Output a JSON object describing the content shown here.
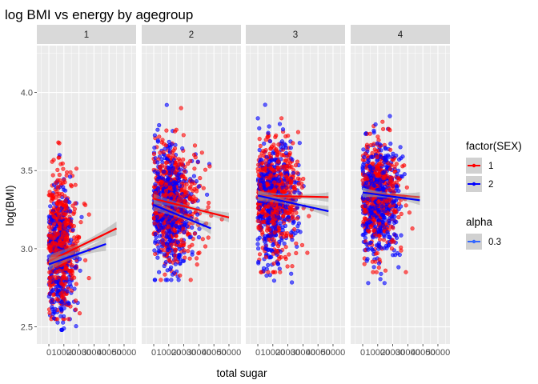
{
  "chart_data": {
    "type": "scatter",
    "title": "log BMI vs energy by agegroup",
    "xlabel": "total sugar",
    "ylabel": "log(BMI)",
    "facets": [
      "1",
      "2",
      "3",
      "4"
    ],
    "xlim": [
      -8000,
      58000
    ],
    "ylim": [
      2.39,
      4.3
    ],
    "x_ticks": [
      0,
      10000,
      20000,
      30000,
      40000,
      50000
    ],
    "x_tick_labels": [
      "0",
      "10000",
      "20000",
      "30000",
      "40000",
      "50000"
    ],
    "y_ticks": [
      2.5,
      3.0,
      3.5,
      4.0
    ],
    "y_tick_labels": [
      "2.5",
      "3.0",
      "3.5",
      "4.0"
    ],
    "colors": {
      "1": "#ff0000",
      "2": "#0000ff",
      "panel_bg": "#ebebeb",
      "grid": "#ffffff",
      "strip_bg": "#d9d9d9",
      "ribbon": "#999999",
      "alpha_key": "#3366ff"
    },
    "point_alpha": 0.6,
    "series": [
      {
        "name": "1",
        "color": "#ff0000"
      },
      {
        "name": "2",
        "color": "#0000ff"
      }
    ],
    "point_clouds": [
      {
        "facet": "1",
        "group": "1",
        "n": 520,
        "x_mean": 9000,
        "x_sd": 7500,
        "x_range": [
          0,
          47000
        ],
        "y_mean": 3.05,
        "y_sd": 0.21,
        "y_range": [
          2.55,
          3.75
        ]
      },
      {
        "facet": "1",
        "group": "2",
        "n": 420,
        "x_mean": 8500,
        "x_sd": 6500,
        "x_range": [
          0,
          32000
        ],
        "y_mean": 2.98,
        "y_sd": 0.2,
        "y_range": [
          2.48,
          3.65
        ]
      },
      {
        "facet": "2",
        "group": "1",
        "n": 560,
        "x_mean": 15000,
        "x_sd": 9500,
        "x_range": [
          0,
          50000
        ],
        "y_mean": 3.3,
        "y_sd": 0.18,
        "y_range": [
          2.8,
          3.9
        ]
      },
      {
        "facet": "2",
        "group": "2",
        "n": 560,
        "x_mean": 13500,
        "x_sd": 8500,
        "x_range": [
          0,
          43000
        ],
        "y_mean": 3.26,
        "y_sd": 0.19,
        "y_range": [
          2.8,
          3.92
        ]
      },
      {
        "facet": "3",
        "group": "1",
        "n": 560,
        "x_mean": 14000,
        "x_sd": 9000,
        "x_range": [
          0,
          48000
        ],
        "y_mean": 3.33,
        "y_sd": 0.17,
        "y_range": [
          2.85,
          3.95
        ]
      },
      {
        "facet": "3",
        "group": "2",
        "n": 520,
        "x_mean": 13000,
        "x_sd": 8000,
        "x_range": [
          0,
          42000
        ],
        "y_mean": 3.31,
        "y_sd": 0.18,
        "y_range": [
          2.72,
          4.05
        ]
      },
      {
        "facet": "4",
        "group": "1",
        "n": 460,
        "x_mean": 13500,
        "x_sd": 7500,
        "x_range": [
          0,
          38000
        ],
        "y_mean": 3.34,
        "y_sd": 0.17,
        "y_range": [
          2.85,
          3.82
        ]
      },
      {
        "facet": "4",
        "group": "2",
        "n": 500,
        "x_mean": 13500,
        "x_sd": 7000,
        "x_range": [
          0,
          35000
        ],
        "y_mean": 3.32,
        "y_sd": 0.18,
        "y_range": [
          2.78,
          4.15
        ]
      }
    ],
    "fit_lines": [
      {
        "facet": "1",
        "group": "1",
        "x": [
          0,
          45000
        ],
        "y": [
          2.92,
          3.13
        ],
        "se": 0.035
      },
      {
        "facet": "1",
        "group": "2",
        "x": [
          0,
          38000
        ],
        "y": [
          2.9,
          3.03
        ],
        "se": 0.035
      },
      {
        "facet": "2",
        "group": "1",
        "x": [
          0,
          50000
        ],
        "y": [
          3.32,
          3.2
        ],
        "se": 0.025
      },
      {
        "facet": "2",
        "group": "2",
        "x": [
          0,
          38000
        ],
        "y": [
          3.28,
          3.13
        ],
        "se": 0.03
      },
      {
        "facet": "3",
        "group": "1",
        "x": [
          0,
          47000
        ],
        "y": [
          3.34,
          3.33
        ],
        "se": 0.025
      },
      {
        "facet": "3",
        "group": "2",
        "x": [
          0,
          47000
        ],
        "y": [
          3.34,
          3.24
        ],
        "se": 0.028
      },
      {
        "facet": "4",
        "group": "1",
        "x": [
          0,
          38000
        ],
        "y": [
          3.36,
          3.33
        ],
        "se": 0.025
      },
      {
        "facet": "4",
        "group": "2",
        "x": [
          0,
          38000
        ],
        "y": [
          3.36,
          3.31
        ],
        "se": 0.025
      }
    ],
    "legends": [
      {
        "title": "factor(SEX)",
        "placement": "right",
        "entries": [
          {
            "label": "1",
            "color": "#ff0000"
          },
          {
            "label": "2",
            "color": "#0000ff"
          }
        ]
      },
      {
        "title": "alpha",
        "placement": "right",
        "entries": [
          {
            "label": "0.3",
            "color": "#3366ff"
          }
        ]
      }
    ],
    "grid": true,
    "smooth_method": "lm"
  }
}
